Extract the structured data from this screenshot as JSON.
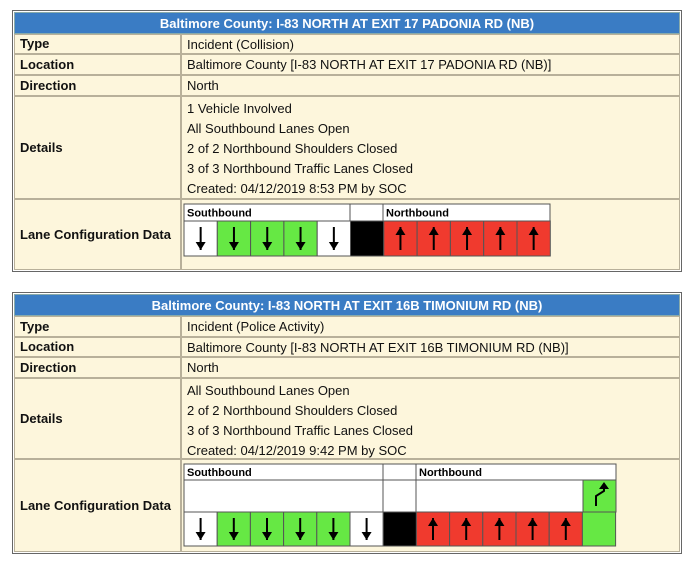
{
  "incidents": [
    {
      "title": "Baltimore County: I-83 NORTH AT EXIT 17 PADONIA RD (NB)",
      "rows": [
        {
          "label": "Type",
          "value": "Incident (Collision)"
        },
        {
          "label": "Location",
          "value": "Baltimore County [I-83 NORTH AT EXIT 17 PADONIA RD (NB)]"
        },
        {
          "label": "Direction",
          "value": "North"
        },
        {
          "label": "Details",
          "lines": [
            "1 Vehicle Involved",
            "All Southbound Lanes Open",
            "2 of 2 Northbound Shoulders Closed",
            "3 of 3 Northbound Traffic Lanes Closed",
            "Created: 04/12/2019 8:53 PM by SOC"
          ]
        },
        {
          "label": "Lane Configuration Data"
        }
      ],
      "lane_config": {
        "southbound": "Southbound",
        "northbound": "Northbound"
      }
    },
    {
      "title": "Baltimore County: I-83 NORTH AT EXIT 16B TIMONIUM RD (NB)",
      "rows": [
        {
          "label": "Type",
          "value": "Incident (Police Activity)"
        },
        {
          "label": "Location",
          "value": "Baltimore County [I-83 NORTH AT EXIT 16B TIMONIUM RD (NB)]"
        },
        {
          "label": "Direction",
          "value": "North"
        },
        {
          "label": "Details",
          "lines": [
            "All Southbound Lanes Open",
            "2 of 2 Northbound Shoulders Closed",
            "3 of 3 Northbound Traffic Lanes Closed",
            "Created: 04/12/2019 9:42 PM by SOC"
          ]
        },
        {
          "label": "Lane Configuration Data"
        }
      ],
      "lane_config": {
        "southbound": "Southbound",
        "northbound": "Northbound"
      }
    }
  ]
}
